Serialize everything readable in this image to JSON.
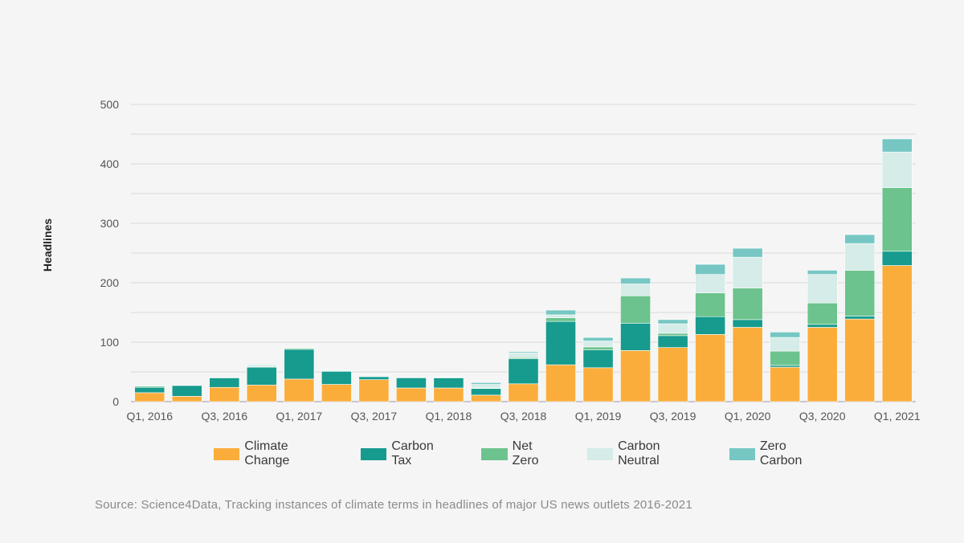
{
  "chart_data": {
    "type": "bar",
    "stacked": true,
    "title": "",
    "xlabel": "",
    "ylabel": "Headlines",
    "ylim": [
      0,
      500
    ],
    "yticks": [
      0,
      100,
      200,
      300,
      400,
      500
    ],
    "grid": true,
    "categories": [
      "Q1, 2016",
      "Q2, 2016",
      "Q3, 2016",
      "Q4, 2016",
      "Q1, 2017",
      "Q2, 2017",
      "Q3, 2017",
      "Q4, 2017",
      "Q1, 2018",
      "Q2, 2018",
      "Q3, 2018",
      "Q4, 2018",
      "Q1, 2019",
      "Q2, 2019",
      "Q3, 2019",
      "Q4, 2019",
      "Q1, 2020",
      "Q2, 2020",
      "Q3, 2020",
      "Q4, 2020",
      "Q1, 2021"
    ],
    "xtick_labels": [
      "Q1, 2016",
      "Q3, 2016",
      "Q1, 2017",
      "Q3, 2017",
      "Q1, 2018",
      "Q3, 2018",
      "Q1, 2019",
      "Q3, 2019",
      "Q1, 2020",
      "Q3, 2020",
      "Q1, 2021"
    ],
    "series": [
      {
        "name": "Climate Change",
        "color": "#fbad3b",
        "values": [
          15,
          9,
          24,
          28,
          38,
          29,
          37,
          23,
          23,
          11,
          30,
          62,
          57,
          86,
          91,
          113,
          125,
          58,
          125,
          139,
          229
        ]
      },
      {
        "name": "Carbon Tax",
        "color": "#169b8e",
        "values": [
          9,
          18,
          16,
          30,
          50,
          22,
          5,
          17,
          17,
          11,
          42,
          73,
          30,
          46,
          20,
          30,
          13,
          3,
          5,
          5,
          24
        ]
      },
      {
        "name": "Net Zero",
        "color": "#6cc38d",
        "values": [
          2,
          0,
          1,
          1,
          2,
          1,
          1,
          0,
          1,
          1,
          2,
          6,
          5,
          46,
          4,
          40,
          53,
          24,
          36,
          77,
          107
        ]
      },
      {
        "name": "Carbon Neutral",
        "color": "#d5ece8",
        "values": [
          1,
          0,
          0,
          3,
          1,
          1,
          1,
          0,
          1,
          6,
          8,
          5,
          10,
          20,
          16,
          31,
          52,
          23,
          48,
          45,
          60
        ]
      },
      {
        "name": "Zero Carbon",
        "color": "#76c7c3",
        "values": [
          1,
          0,
          0,
          1,
          0,
          1,
          1,
          0,
          1,
          3,
          2,
          8,
          6,
          10,
          7,
          17,
          15,
          9,
          7,
          15,
          22
        ]
      }
    ]
  },
  "legend": {
    "items": [
      "Climate Change",
      "Carbon Tax",
      "Net Zero",
      "Carbon Neutral",
      "Zero Carbon"
    ]
  },
  "source": "Source: Science4Data, Tracking instances of climate terms in headlines of major US news outlets 2016-2021"
}
